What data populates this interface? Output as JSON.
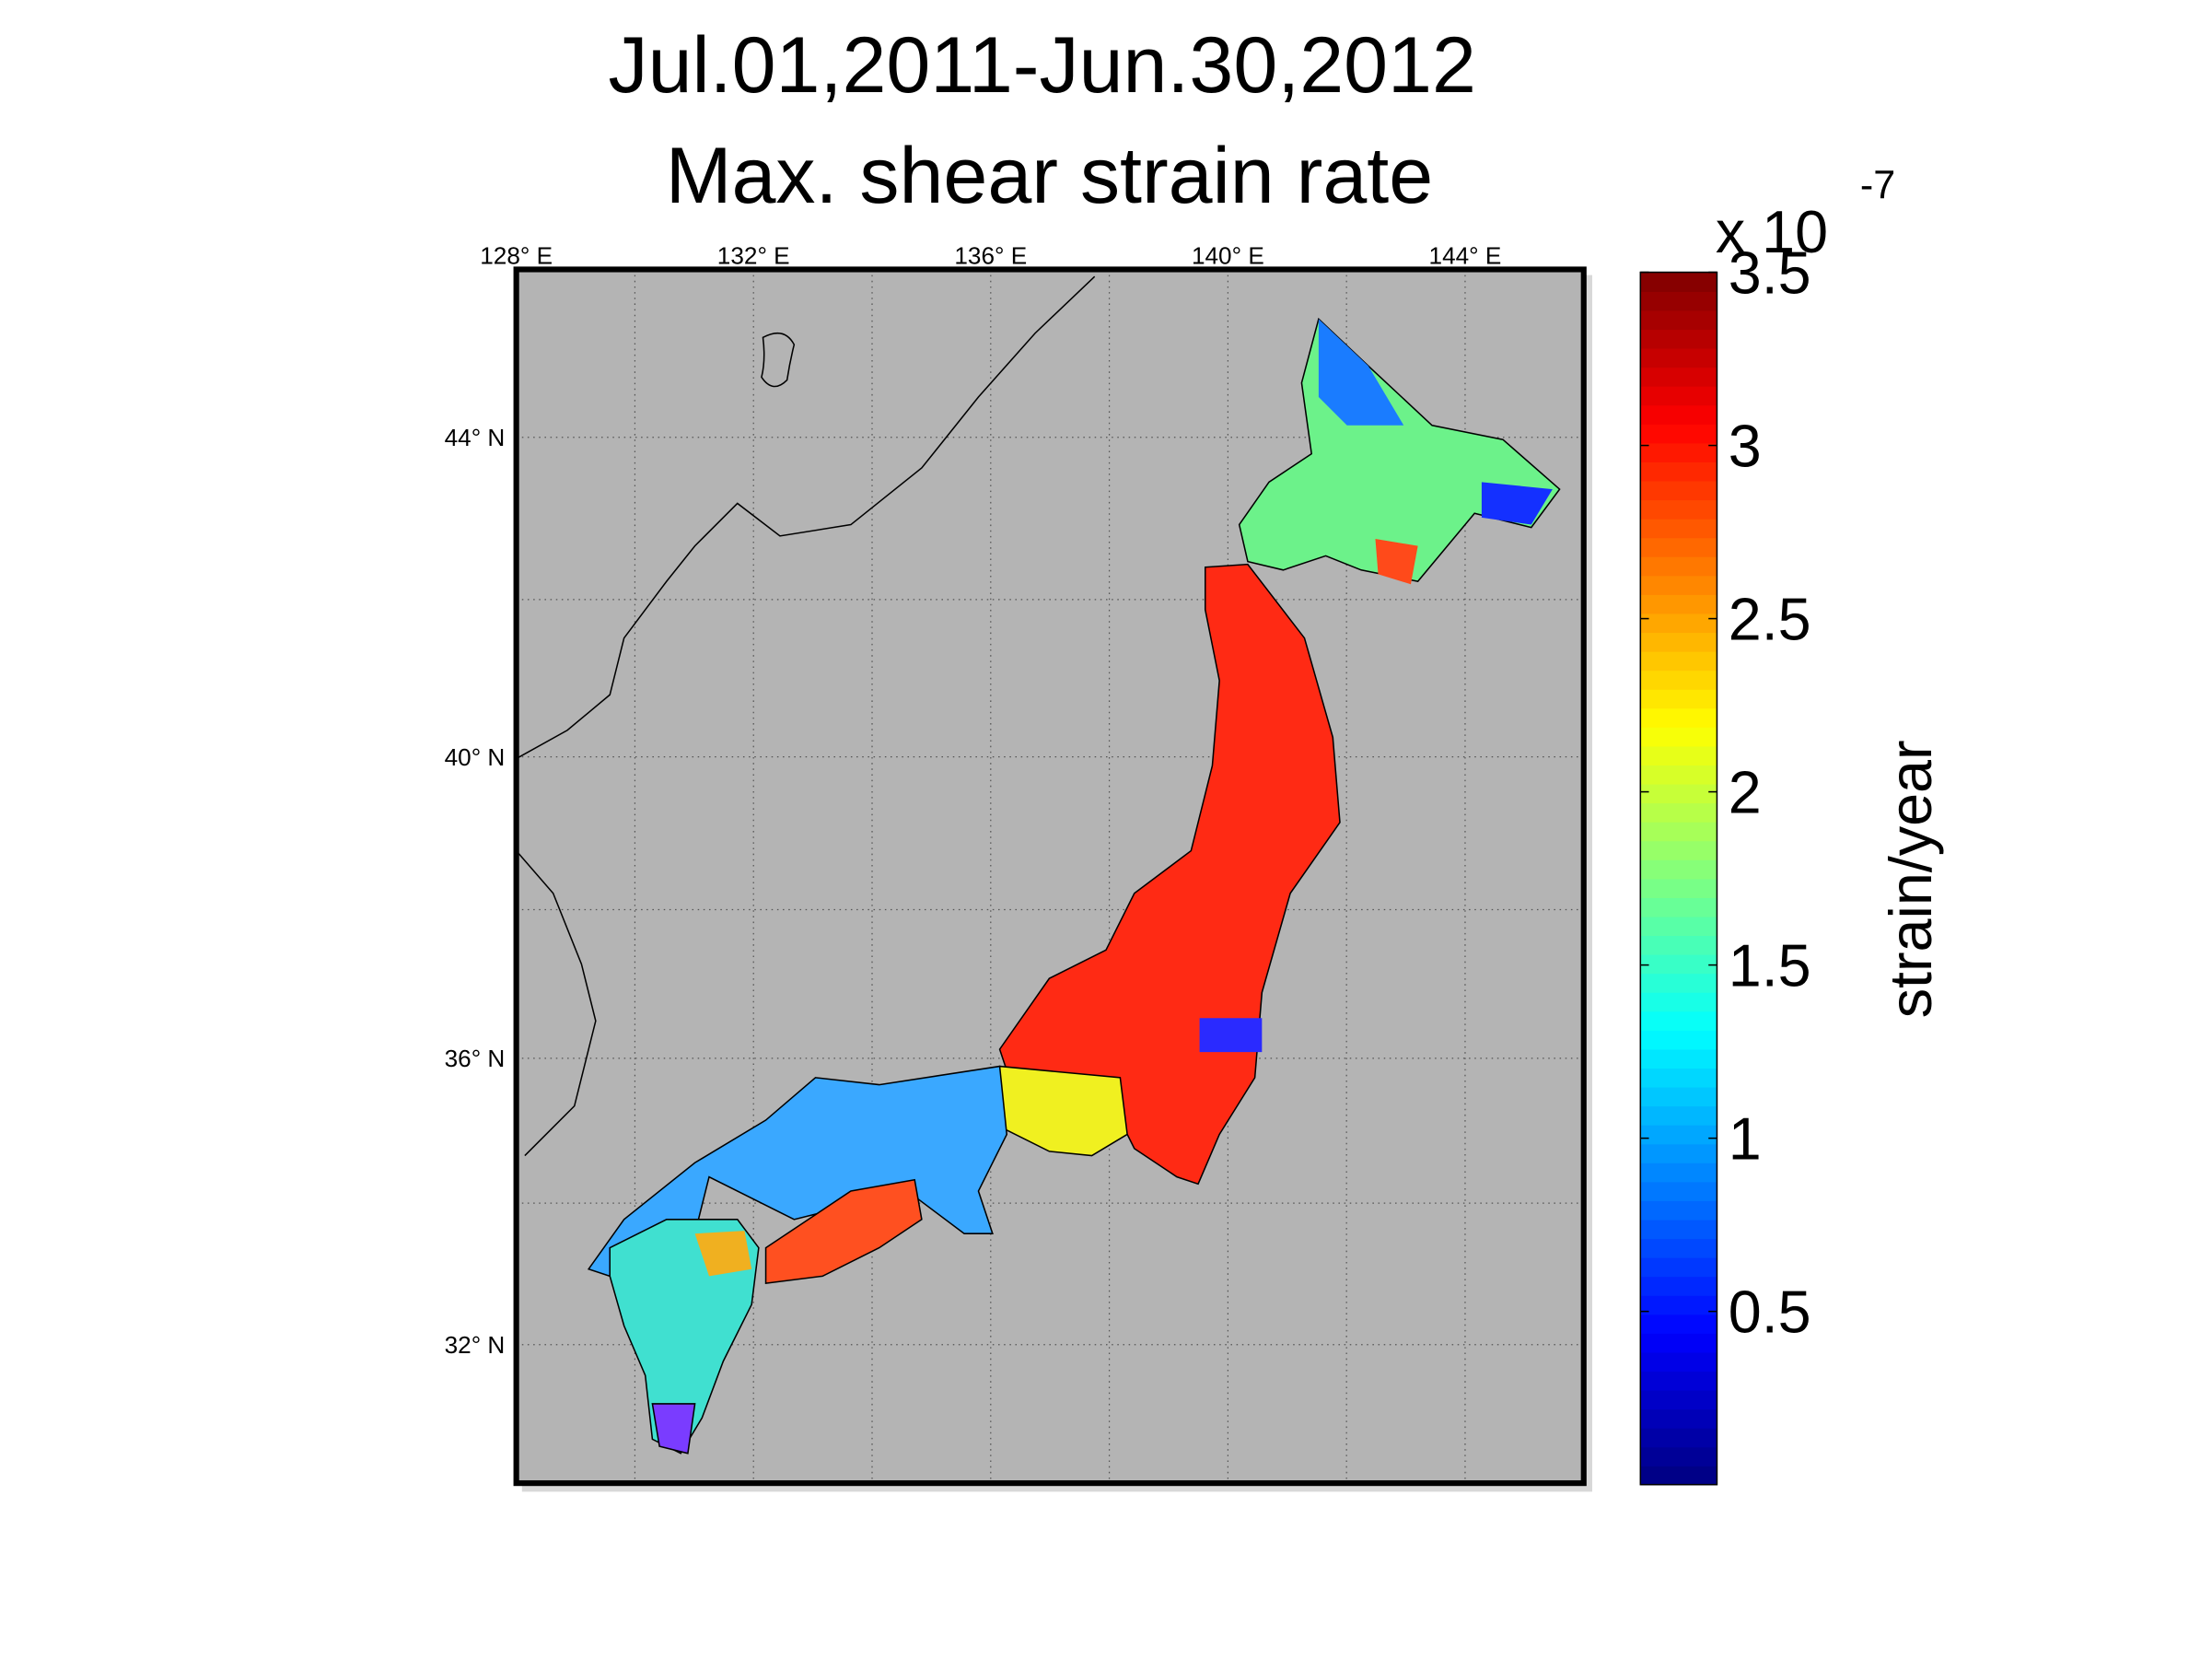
{
  "title": [
    "Jul.01,2011-Jun.30,2012",
    "Max. shear strain rate"
  ],
  "map": {
    "projection": "mercator",
    "xlim": [
      128,
      146
    ],
    "ylim": [
      30,
      46
    ],
    "xticks": [
      {
        "value": 128,
        "label": "128° E"
      },
      {
        "value": 132,
        "label": "132° E"
      },
      {
        "value": 136,
        "label": "136° E"
      },
      {
        "value": 140,
        "label": "140° E"
      },
      {
        "value": 144,
        "label": "144° E"
      }
    ],
    "yticks": [
      {
        "value": 32,
        "label": "32° N"
      },
      {
        "value": 36,
        "label": "36° N"
      },
      {
        "value": 40,
        "label": "40° N"
      },
      {
        "value": 44,
        "label": "44° N"
      }
    ],
    "xgrid": [
      130,
      132,
      134,
      136,
      138,
      140,
      142,
      144
    ],
    "ygrid": [
      32,
      34,
      36,
      38,
      40,
      42,
      44
    ],
    "background": "#b4b4b4"
  },
  "colorbar": {
    "clim": [
      0,
      3.5
    ],
    "ticks": [
      0.5,
      1,
      1.5,
      2,
      2.5,
      3,
      3.5
    ],
    "colormap": "jet",
    "label": "strain/year",
    "multiplier": "x 10",
    "exponent": "-7"
  }
}
